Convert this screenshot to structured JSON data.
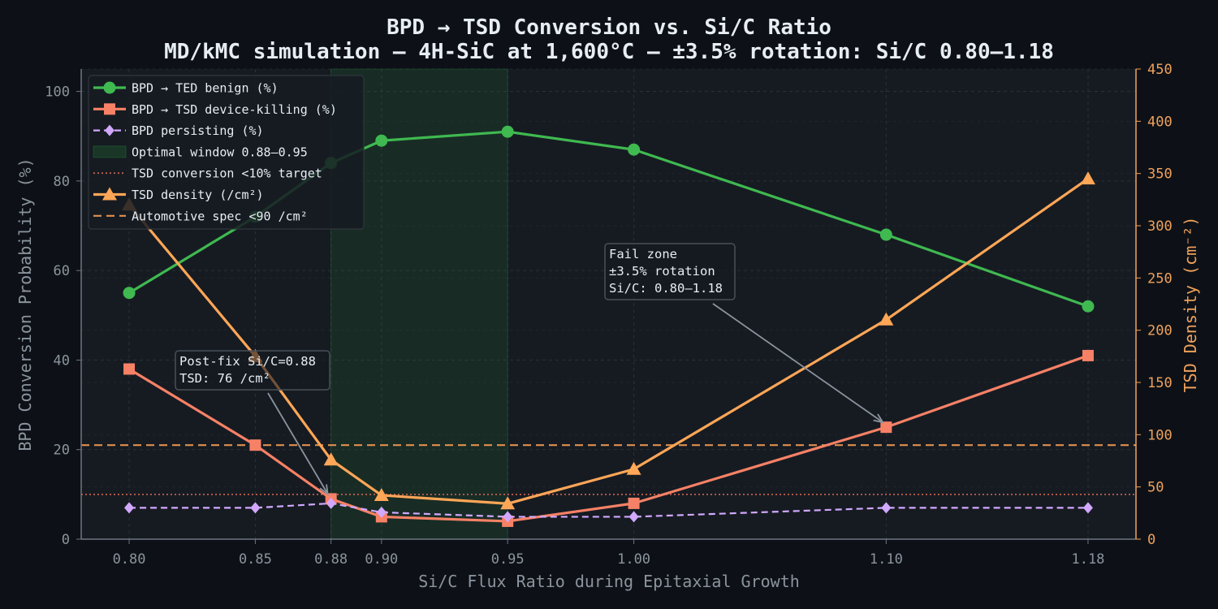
{
  "chart_data": {
    "type": "line",
    "title": "BPD → TSD Conversion vs. Si/C Ratio",
    "subtitle": "MD/kMC simulation — 4H-SiC at 1,600°C — ±3.5% rotation: Si/C 0.80–1.18",
    "xlabel": "Si/C Flux Ratio during Epitaxial Growth",
    "ylabel": "BPD Conversion Probability (%)",
    "y2label": "TSD Density (cm⁻²)",
    "x": [
      0.8,
      0.85,
      0.88,
      0.9,
      0.95,
      1.0,
      1.1,
      1.18
    ],
    "xticklabels": [
      "0.80",
      "0.85",
      "0.88",
      "0.90",
      "0.95",
      "1.00",
      "1.10",
      "1.18"
    ],
    "xlim": [
      0.781,
      1.199
    ],
    "ylim": [
      0,
      105
    ],
    "y2lim": [
      0,
      450
    ],
    "yticks": [
      0,
      20,
      40,
      60,
      80,
      100
    ],
    "y2ticks": [
      0,
      50,
      100,
      150,
      200,
      250,
      300,
      350,
      400,
      450
    ],
    "grid": true,
    "legend_position": "top-left",
    "series": [
      {
        "name": "BPD → TED benign (%)",
        "axis": "left",
        "color": "#3fb950",
        "marker": "circle",
        "dash": "solid",
        "values": [
          55,
          72,
          84,
          89,
          91,
          87,
          68,
          52
        ]
      },
      {
        "name": "BPD → TSD device-killing (%)",
        "axis": "left",
        "color": "#f78166",
        "marker": "square",
        "dash": "solid",
        "values": [
          38,
          21,
          9,
          5,
          4,
          8,
          25,
          41
        ]
      },
      {
        "name": "BPD persisting (%)",
        "axis": "left",
        "color": "#d2a8ff",
        "marker": "diamond",
        "dash": "dashed",
        "values": [
          7,
          7,
          8,
          6,
          5,
          5,
          7,
          7
        ]
      },
      {
        "name": "TSD density (/cm²)",
        "axis": "right",
        "color": "#ffa657",
        "marker": "triangle",
        "dash": "solid",
        "values": [
          320,
          175,
          76,
          42,
          34,
          67,
          210,
          345
        ]
      }
    ],
    "shaded_region": {
      "name": "Optimal window 0.88–0.95",
      "x_range": [
        0.88,
        0.95
      ],
      "color": "#238636"
    },
    "reference_lines": [
      {
        "name": "TSD conversion <10% target",
        "axis": "left",
        "y": 10,
        "color": "#c0604e",
        "style": "dotted"
      },
      {
        "name": "Automotive spec <90 /cm²",
        "axis": "right",
        "y": 90,
        "color": "#e0904e",
        "style": "dashed"
      }
    ],
    "annotations": [
      {
        "lines": [
          "Post-fix Si/C=0.88",
          "TSD: 76 /cm²"
        ],
        "target_x": 0.88,
        "target_y": 9
      },
      {
        "lines": [
          "Fail zone",
          "±3.5% rotation",
          "Si/C: 0.80–1.18"
        ],
        "target_x": 1.1,
        "target_y": 25
      }
    ]
  }
}
